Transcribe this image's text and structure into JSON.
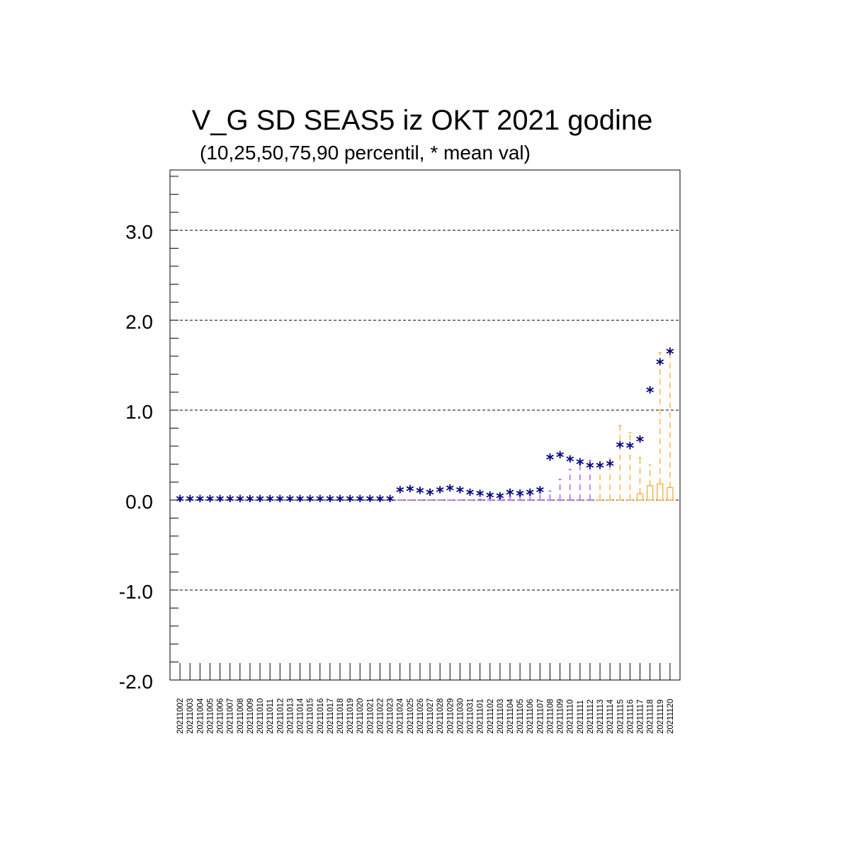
{
  "chart_data": {
    "type": "box",
    "title": "V_G SD SEAS5 iz OKT 2021 godine",
    "subtitle": "(10,25,50,75,90 percentil, * mean val)",
    "xlabel": "",
    "ylabel": "",
    "ylim": [
      -2.0,
      3.67
    ],
    "yticks": [
      "3.0",
      "2.0",
      "1.0",
      "0.0",
      "-1.0",
      "-2.0"
    ],
    "grid": "horizontal dashed",
    "categories": [
      "20211002",
      "20211003",
      "20211004",
      "20211005",
      "20211006",
      "20211007",
      "20211008",
      "20211009",
      "20211010",
      "20211011",
      "20211012",
      "20211013",
      "20211014",
      "20211015",
      "20211016",
      "20211017",
      "20211018",
      "20211019",
      "20211020",
      "20211021",
      "20211022",
      "20211023",
      "20211024",
      "20211025",
      "20211026",
      "20211027",
      "20211028",
      "20211029",
      "20211030",
      "20211031",
      "20211101",
      "20211102",
      "20211103",
      "20211104",
      "20211105",
      "20211106",
      "20211107",
      "20211108",
      "20211109",
      "20211110",
      "20211111",
      "20211112",
      "20211113",
      "20211114",
      "20211115",
      "20211116",
      "20211117",
      "20211118",
      "20211119",
      "20211120"
    ],
    "mean": [
      0,
      0,
      0,
      0,
      0,
      0,
      0,
      0,
      0,
      0,
      0,
      0,
      0,
      0,
      0,
      0,
      0,
      0,
      0,
      0,
      0,
      0,
      0.1,
      0.11,
      0.09,
      0.07,
      0.1,
      0.12,
      0.1,
      0.07,
      0.06,
      0.04,
      0.03,
      0.07,
      0.06,
      0.07,
      0.1,
      0.46,
      0.49,
      0.44,
      0.41,
      0.37,
      0.37,
      0.39,
      0.6,
      0.59,
      0.66,
      1.21,
      1.52,
      1.64
    ],
    "p10": [
      0,
      0,
      0,
      0,
      0,
      0,
      0,
      0,
      0,
      0,
      0,
      0,
      0,
      0,
      0,
      0,
      0,
      0,
      0,
      0,
      0,
      0,
      0,
      0,
      0,
      0,
      0,
      0,
      0,
      0,
      0,
      0,
      0,
      0,
      0,
      0,
      0,
      0,
      0,
      0,
      0,
      0,
      0,
      0,
      0,
      0,
      0,
      0,
      0,
      0
    ],
    "p25": [
      0,
      0,
      0,
      0,
      0,
      0,
      0,
      0,
      0,
      0,
      0,
      0,
      0,
      0,
      0,
      0,
      0,
      0,
      0,
      0,
      0,
      0,
      0,
      0,
      0,
      0,
      0,
      0,
      0,
      0,
      0,
      0,
      0,
      0,
      0,
      0,
      0,
      0,
      0,
      0,
      0,
      0,
      0,
      0,
      0,
      0,
      0,
      0,
      0,
      0
    ],
    "p50": [
      0,
      0,
      0,
      0,
      0,
      0,
      0,
      0,
      0,
      0,
      0,
      0,
      0,
      0,
      0,
      0,
      0,
      0,
      0,
      0,
      0,
      0,
      0,
      0,
      0,
      0,
      0,
      0,
      0,
      0,
      0,
      0,
      0,
      0,
      0,
      0,
      0,
      0,
      0,
      0,
      0,
      0,
      0,
      0,
      0,
      0,
      0,
      0,
      0,
      0
    ],
    "p75": [
      0,
      0,
      0,
      0,
      0,
      0,
      0,
      0,
      0,
      0,
      0,
      0,
      0,
      0,
      0,
      0,
      0,
      0,
      0,
      0,
      0,
      0,
      0,
      0,
      0,
      0,
      0,
      0,
      0,
      0,
      0,
      0,
      0,
      0,
      0,
      0,
      0,
      0,
      0,
      0,
      0,
      0,
      0,
      0,
      0,
      0,
      0.07,
      0.16,
      0.18,
      0.14
    ],
    "p90": [
      0,
      0,
      0,
      0,
      0,
      0,
      0,
      0,
      0,
      0,
      0,
      0,
      0,
      0,
      0,
      0,
      0,
      0,
      0,
      0,
      0,
      0,
      0,
      0,
      0,
      0,
      0,
      0,
      0,
      0,
      0.01,
      0.02,
      0.02,
      0.04,
      0.05,
      0.06,
      0.08,
      0.1,
      0.23,
      0.34,
      0.4,
      0.44,
      0.43,
      0.46,
      0.83,
      0.75,
      0.47,
      0.39,
      1.64,
      1.65
    ],
    "colors": {
      "mean": "#000080",
      "purple": "#a040e0",
      "orange": "#f5a623",
      "axis": "#000000",
      "grid": "#000000"
    }
  }
}
